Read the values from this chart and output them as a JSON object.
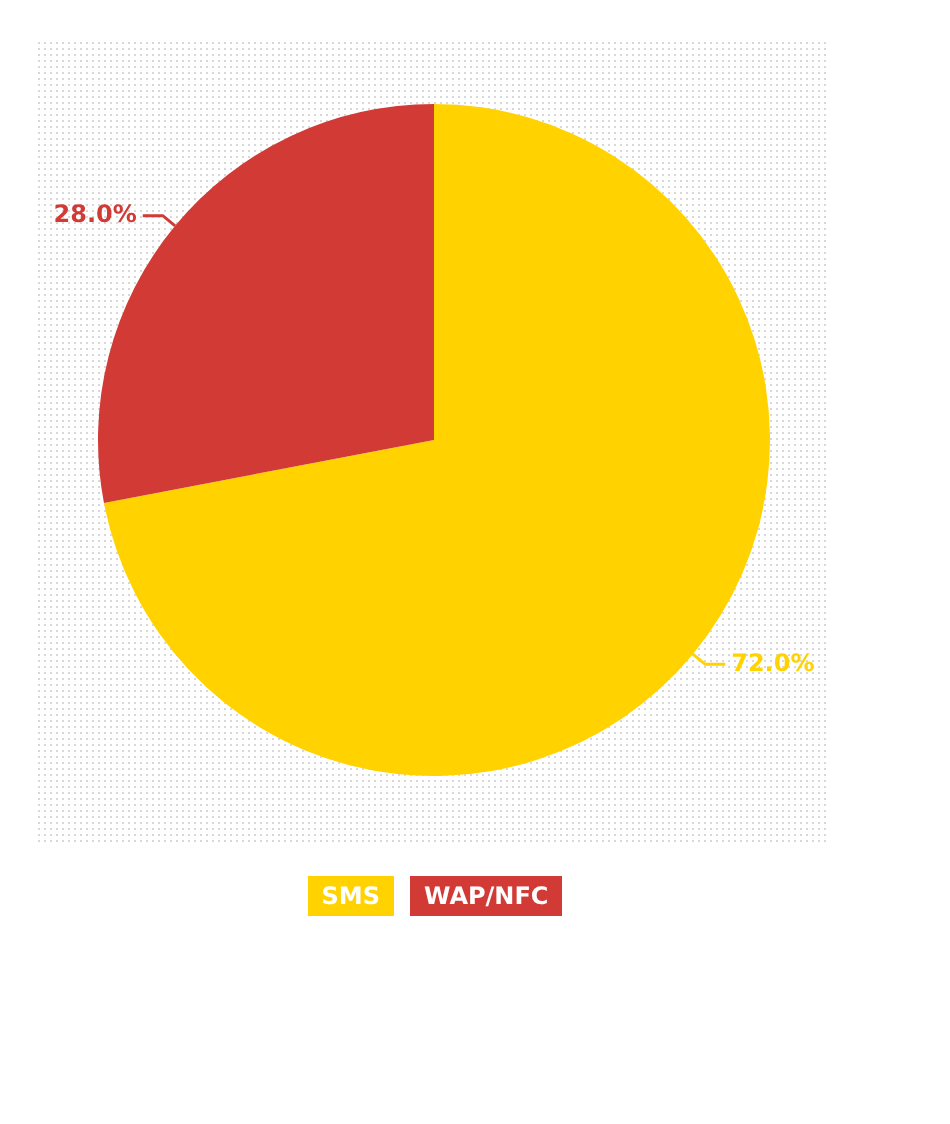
{
  "chart_data": {
    "type": "pie",
    "categories": [
      "SMS",
      "WAP/NFC"
    ],
    "values": [
      72,
      28
    ],
    "colors": [
      "#ffd200",
      "#d23a36"
    ],
    "value_labels": [
      "72.0%",
      "28.0%"
    ],
    "legend": "bottom"
  }
}
